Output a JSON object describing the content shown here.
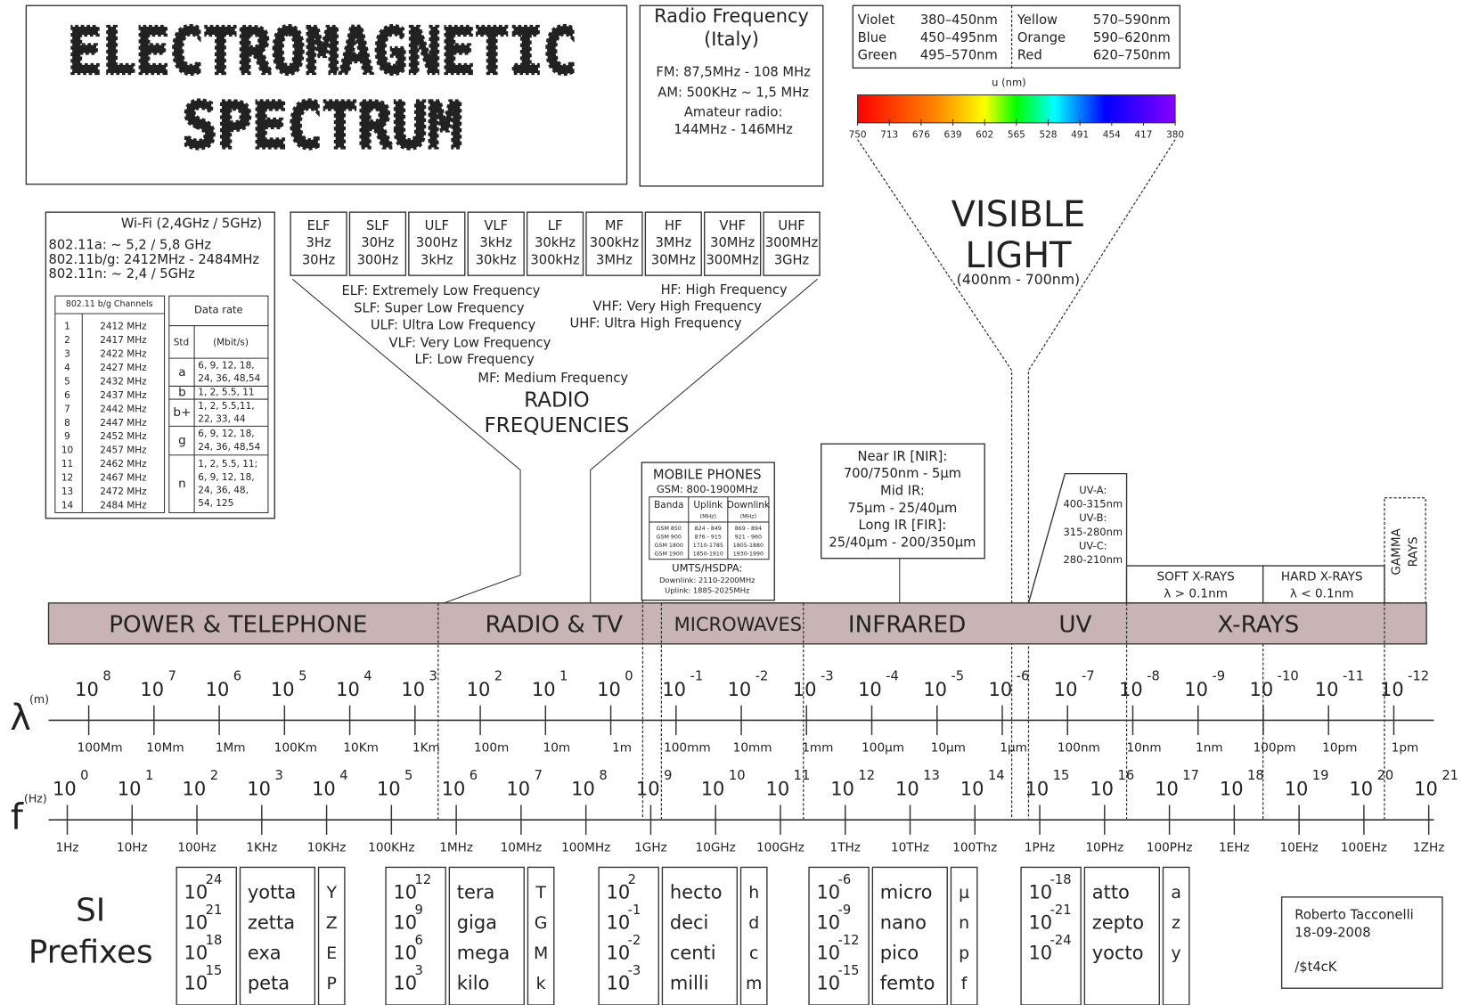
{
  "title": [
    "ELECTROMAGNETIC",
    "SPECTRUM"
  ],
  "radio_italy": {
    "title": [
      "Radio Frequency",
      "(Italy)"
    ],
    "lines": [
      "FM: 87,5MHz - 108 MHz",
      "AM: 500KHz ~ 1,5 MHz",
      "Amateur radio:",
      "144MHz - 146MHz"
    ]
  },
  "colors": [
    {
      "name": "Violet",
      "range": "380–450nm",
      "color": "#9b30ff"
    },
    {
      "name": "Blue",
      "range": "450–495nm",
      "color": "#2020ee"
    },
    {
      "name": "Green",
      "range": "495–570nm",
      "color": "#22cc22"
    },
    {
      "name": "Yellow",
      "range": "570–590nm",
      "color": "#f0e040"
    },
    {
      "name": "Orange",
      "range": "590–620nm",
      "color": "#ff9900"
    },
    {
      "name": "Red",
      "range": "620–750nm",
      "color": "#ee2222"
    }
  ],
  "visible_scale": {
    "label": "u (nm)",
    "ticks": [
      750,
      713,
      676,
      639,
      602,
      565,
      528,
      491,
      454,
      417,
      380
    ]
  },
  "visible_light": {
    "title": [
      "VISIBLE",
      "LIGHT"
    ],
    "range": "(400nm - 700nm)"
  },
  "wifi": {
    "title": "Wi-Fi (2,4GHz / 5GHz)",
    "lines": [
      "802.11a: ~ 5,2 / 5,8 GHz",
      "802.11b/g: 2412MHz - 2484MHz",
      "802.11n: ~ 2,4 / 5GHz"
    ],
    "channels_header": "802.11 b/g Channels",
    "channels": [
      [
        1,
        "2412 MHz"
      ],
      [
        2,
        "2417 MHz"
      ],
      [
        3,
        "2422 MHz"
      ],
      [
        4,
        "2427 MHz"
      ],
      [
        5,
        "2432 MHz"
      ],
      [
        6,
        "2437 MHz"
      ],
      [
        7,
        "2442 MHz"
      ],
      [
        8,
        "2447 MHz"
      ],
      [
        9,
        "2452 MHz"
      ],
      [
        10,
        "2457 MHz"
      ],
      [
        11,
        "2462 MHz"
      ],
      [
        12,
        "2467 MHz"
      ],
      [
        13,
        "2472 MHz"
      ],
      [
        14,
        "2484 MHz"
      ]
    ],
    "rate_header": "Data rate",
    "rate_subheader": [
      "Std",
      "(Mbit/s)"
    ],
    "rates": [
      {
        "std": "a",
        "lines": [
          "6, 9, 12, 18,",
          "24, 36, 48,54"
        ]
      },
      {
        "std": "b",
        "lines": [
          "1, 2, 5.5, 11"
        ]
      },
      {
        "std": "b+",
        "lines": [
          "1, 2, 5.5,11,",
          "22, 33, 44"
        ]
      },
      {
        "std": "g",
        "lines": [
          "6, 9, 12, 18,",
          "24, 36, 48,54"
        ]
      },
      {
        "std": "n",
        "lines": [
          "1, 2, 5.5, 11;",
          "6, 9, 12, 18,",
          "24, 36, 48,",
          "54, 125"
        ]
      }
    ]
  },
  "bands": [
    [
      "ELF",
      "3Hz",
      "30Hz"
    ],
    [
      "SLF",
      "30Hz",
      "300Hz"
    ],
    [
      "ULF",
      "300Hz",
      "3kHz"
    ],
    [
      "VLF",
      "3kHz",
      "30kHz"
    ],
    [
      "LF",
      "30kHz",
      "300kHz"
    ],
    [
      "MF",
      "300kHz",
      "3MHz"
    ],
    [
      "HF",
      "3MHz",
      "30MHz"
    ],
    [
      "VHF",
      "30MHz",
      "300MHz"
    ],
    [
      "UHF",
      "300MHz",
      "3GHz"
    ]
  ],
  "band_definitions_left": [
    "ELF: Extremely Low Frequency",
    "SLF: Super Low Frequency",
    "ULF: Ultra Low Frequency",
    "VLF: Very Low Frequency",
    "LF: Low Frequency",
    "MF: Medium Frequency"
  ],
  "band_definitions_right": [
    "HF: High Frequency",
    "VHF: Very High Frequency",
    "UHF: Ultra High Frequency"
  ],
  "radio_frequencies": [
    "RADIO",
    "FREQUENCIES"
  ],
  "mobile": {
    "title": "MOBILE PHONES",
    "gsm": "GSM: 800-1900MHz",
    "headers": [
      "Banda",
      "Uplink",
      "Downlink"
    ],
    "units": [
      "(MHz)",
      "(MHz)"
    ],
    "rows": [
      [
        "GSM 850",
        "824 - 849",
        "869 - 894"
      ],
      [
        "GSM 900",
        "876 - 915",
        "921 - 960"
      ],
      [
        "GSM 1800",
        "1710-1785",
        "1805-1880"
      ],
      [
        "GSM 1900",
        "1850-1910",
        "1930-1990"
      ]
    ],
    "umts": "UMTS/HSDPA:",
    "downlink": "Downlink: 2110-2200MHz",
    "uplink": "Uplink: 1885-2025MHz"
  },
  "infrared_box": [
    "Near IR [NIR]:",
    "700/750nm - 5µm",
    "Mid IR:",
    "75µm - 25/40µm",
    "Long IR [FIR]:",
    "25/40µm - 200/350µm"
  ],
  "uv_box": [
    "UV-A:",
    "400-315nm",
    "UV-B:",
    "315-280nm",
    "UV-C:",
    "280-210nm"
  ],
  "soft_xrays": [
    "SOFT X-RAYS",
    "λ > 0.1nm"
  ],
  "hard_xrays": [
    "HARD X-RAYS",
    "λ < 0.1nm"
  ],
  "gamma_rays": [
    "GAMMA",
    "RAYS"
  ],
  "regions": [
    "POWER & TELEPHONE",
    "RADIO & TV",
    "MICROWAVES",
    "INFRARED",
    "UV",
    "X-RAYS"
  ],
  "power_base": "10",
  "wavelength": {
    "symbol": "λ",
    "unit": "(m)",
    "exponents": [
      8,
      7,
      6,
      5,
      4,
      3,
      2,
      1,
      0,
      -1,
      -2,
      -3,
      -4,
      -5,
      -6,
      -7,
      -8,
      -9,
      -10,
      -11,
      -12
    ],
    "labels": [
      "100Mm",
      "10Mm",
      "1Mm",
      "100Km",
      "10Km",
      "1Km",
      "100m",
      "10m",
      "1m",
      "100mm",
      "10mm",
      "1mm",
      "100µm",
      "10µm",
      "1µm",
      "100nm",
      "10nm",
      "1nm",
      "100pm",
      "10pm",
      "1pm"
    ]
  },
  "frequency": {
    "symbol": "f",
    "unit": "(Hz)",
    "exponents": [
      0,
      1,
      2,
      3,
      4,
      5,
      6,
      7,
      8,
      9,
      10,
      11,
      12,
      13,
      14,
      15,
      16,
      17,
      18,
      19,
      20,
      21
    ],
    "labels": [
      "1Hz",
      "10Hz",
      "100Hz",
      "1KHz",
      "10KHz",
      "100KHz",
      "1MHz",
      "10MHz",
      "100MHz",
      "1GHz",
      "10GHz",
      "100GHz",
      "1THz",
      "10THz",
      "100Thz",
      "1PHz",
      "10PHz",
      "100PHz",
      "1EHz",
      "10EHz",
      "100EHz",
      "1ZHz"
    ]
  },
  "si": {
    "title": [
      "SI",
      "Prefixes"
    ],
    "groups": [
      [
        [
          24,
          "yotta",
          "Y"
        ],
        [
          21,
          "zetta",
          "Z"
        ],
        [
          18,
          "exa",
          "E"
        ],
        [
          15,
          "peta",
          "P"
        ]
      ],
      [
        [
          12,
          "tera",
          "T"
        ],
        [
          9,
          "giga",
          "G"
        ],
        [
          6,
          "mega",
          "M"
        ],
        [
          3,
          "kilo",
          "k"
        ]
      ],
      [
        [
          2,
          "hecto",
          "h"
        ],
        [
          -1,
          "deci",
          "d"
        ],
        [
          -2,
          "centi",
          "c"
        ],
        [
          -3,
          "milli",
          "m"
        ]
      ],
      [
        [
          -6,
          "micro",
          "µ"
        ],
        [
          -9,
          "nano",
          "n"
        ],
        [
          -12,
          "pico",
          "p"
        ],
        [
          -15,
          "femto",
          "f"
        ]
      ],
      [
        [
          -18,
          "atto",
          "a"
        ],
        [
          -21,
          "zepto",
          "z"
        ],
        [
          -24,
          "yocto",
          "y"
        ]
      ]
    ]
  },
  "credit": [
    "Roberto Tacconelli",
    "18-09-2008",
    "/$t4cK"
  ]
}
